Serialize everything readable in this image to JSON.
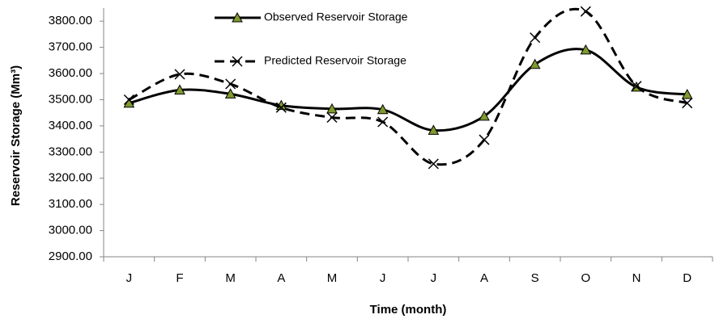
{
  "chart_data": {
    "type": "line",
    "y_label": "Reservoir Storage (Mm³)",
    "x_label": "Time (month)",
    "categories": [
      "J",
      "F",
      "M",
      "A",
      "M",
      "J",
      "J",
      "A",
      "S",
      "O",
      "N",
      "D"
    ],
    "series": [
      {
        "name": "Observed Reservoir Storage",
        "color": "#000000",
        "marker_color": "#7f9a2e",
        "line_style": "solid",
        "marker": "triangle",
        "values": [
          3487,
          3537,
          3522,
          3478,
          3465,
          3462,
          3383,
          3437,
          3635,
          3690,
          3548,
          3520
        ]
      },
      {
        "name": "Predicted Reservoir Storage",
        "color": "#000000",
        "line_style": "dashed",
        "marker": "x",
        "values": [
          3500,
          3597,
          3560,
          3470,
          3432,
          3415,
          3255,
          3347,
          3737,
          3837,
          3552,
          3487
        ]
      }
    ],
    "ylim": [
      2900,
      3850
    ],
    "yticks": [
      {
        "value": 2900,
        "label": "2900.00"
      },
      {
        "value": 3000,
        "label": "3000.00"
      },
      {
        "value": 3100,
        "label": "3100.00"
      },
      {
        "value": 3200,
        "label": "3200.00"
      },
      {
        "value": 3300,
        "label": "3300.00"
      },
      {
        "value": 3400,
        "label": "3400.00"
      },
      {
        "value": 3500,
        "label": "3500.00"
      },
      {
        "value": 3600,
        "label": "3600.00"
      },
      {
        "value": 3700,
        "label": "3700.00"
      },
      {
        "value": 3800,
        "label": "3800.00"
      }
    ],
    "grid": false
  }
}
